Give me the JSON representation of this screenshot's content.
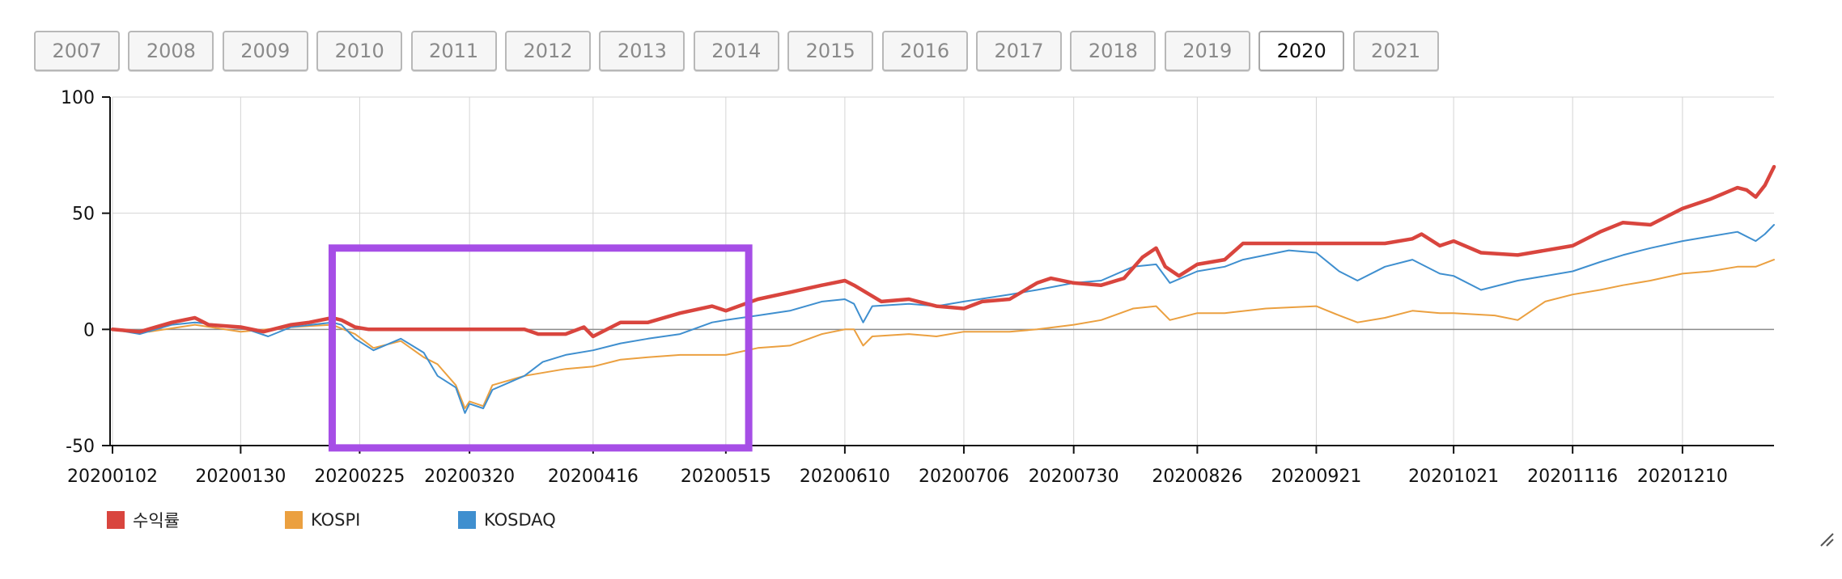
{
  "year_tabs": [
    {
      "label": "2007",
      "selected": false
    },
    {
      "label": "2008",
      "selected": false
    },
    {
      "label": "2009",
      "selected": false
    },
    {
      "label": "2010",
      "selected": false
    },
    {
      "label": "2011",
      "selected": false
    },
    {
      "label": "2012",
      "selected": false
    },
    {
      "label": "2013",
      "selected": false
    },
    {
      "label": "2014",
      "selected": false
    },
    {
      "label": "2015",
      "selected": false
    },
    {
      "label": "2016",
      "selected": false
    },
    {
      "label": "2017",
      "selected": false
    },
    {
      "label": "2018",
      "selected": false
    },
    {
      "label": "2019",
      "selected": false
    },
    {
      "label": "2020",
      "selected": true
    },
    {
      "label": "2021",
      "selected": false
    }
  ],
  "colors": {
    "return": "#d9453e",
    "kospi": "#eba040",
    "kosdaq": "#3f8fcf",
    "highlight": "#a64ee6",
    "grid": "#d4d4d4",
    "axis": "#111111"
  },
  "legend": [
    {
      "label": "수익률",
      "color": "#d9453e"
    },
    {
      "label": "KOSPI",
      "color": "#eba040"
    },
    {
      "label": "KOSDAQ",
      "color": "#3f8fcf"
    }
  ],
  "chart_data": {
    "type": "line",
    "title": "",
    "xlabel": "",
    "ylabel": "",
    "ylim": [
      -50,
      100
    ],
    "yticks": [
      -50,
      0,
      50,
      100
    ],
    "grid": true,
    "legend_position": "bottom-left",
    "x_tick_labels": [
      "20200102",
      "20200130",
      "20200225",
      "20200320",
      "20200416",
      "20200515",
      "20200610",
      "20200706",
      "20200730",
      "20200826",
      "20200921",
      "20201021",
      "20201116",
      "20201210"
    ],
    "x": [
      "20200102",
      "20200130",
      "20200225",
      "20200320",
      "20200416",
      "20200515",
      "20200610",
      "20200706",
      "20200730",
      "20200826",
      "20200921",
      "20201021",
      "20201116",
      "20201210",
      "20201230"
    ],
    "highlight_box": {
      "x_start": "20200219",
      "x_end": "20200520",
      "y_top": 35,
      "y_bottom": -51
    },
    "series": [
      {
        "name": "수익률",
        "points": [
          [
            "20200102",
            0
          ],
          [
            "20200108",
            -1
          ],
          [
            "20200115",
            3
          ],
          [
            "20200120",
            5
          ],
          [
            "20200123",
            2
          ],
          [
            "20200130",
            1
          ],
          [
            "20200204",
            -1
          ],
          [
            "20200210",
            2
          ],
          [
            "20200214",
            3
          ],
          [
            "20200219",
            5
          ],
          [
            "20200221",
            4
          ],
          [
            "20200224",
            1
          ],
          [
            "20200227",
            0
          ],
          [
            "20200305",
            0
          ],
          [
            "20200320",
            0
          ],
          [
            "20200401",
            0
          ],
          [
            "20200404",
            -2
          ],
          [
            "20200410",
            -2
          ],
          [
            "20200414",
            1
          ],
          [
            "20200416",
            -3
          ],
          [
            "20200422",
            3
          ],
          [
            "20200428",
            3
          ],
          [
            "20200505",
            7
          ],
          [
            "20200512",
            10
          ],
          [
            "20200515",
            8
          ],
          [
            "20200522",
            13
          ],
          [
            "20200529",
            16
          ],
          [
            "20200605",
            19
          ],
          [
            "20200610",
            21
          ],
          [
            "20200612",
            19
          ],
          [
            "20200618",
            12
          ],
          [
            "20200624",
            13
          ],
          [
            "20200630",
            10
          ],
          [
            "20200706",
            9
          ],
          [
            "20200710",
            12
          ],
          [
            "20200716",
            13
          ],
          [
            "20200722",
            20
          ],
          [
            "20200725",
            22
          ],
          [
            "20200730",
            20
          ],
          [
            "20200805",
            19
          ],
          [
            "20200810",
            22
          ],
          [
            "20200814",
            31
          ],
          [
            "20200817",
            35
          ],
          [
            "20200819",
            27
          ],
          [
            "20200822",
            23
          ],
          [
            "20200826",
            28
          ],
          [
            "20200901",
            30
          ],
          [
            "20200905",
            37
          ],
          [
            "20200921",
            37
          ],
          [
            "20200930",
            37
          ],
          [
            "20201006",
            37
          ],
          [
            "20201012",
            39
          ],
          [
            "20201014",
            41
          ],
          [
            "20201018",
            36
          ],
          [
            "20201021",
            38
          ],
          [
            "20201027",
            33
          ],
          [
            "20201104",
            32
          ],
          [
            "20201116",
            36
          ],
          [
            "20201122",
            42
          ],
          [
            "20201127",
            46
          ],
          [
            "20201203",
            45
          ],
          [
            "20201210",
            52
          ],
          [
            "20201216",
            56
          ],
          [
            "20201222",
            61
          ],
          [
            "20201224",
            60
          ],
          [
            "20201226",
            57
          ],
          [
            "20201228",
            62
          ],
          [
            "20201230",
            70
          ]
        ]
      },
      {
        "name": "KOSPI",
        "points": [
          [
            "20200102",
            0
          ],
          [
            "20200110",
            -1
          ],
          [
            "20200120",
            2
          ],
          [
            "20200130",
            -1
          ],
          [
            "20200210",
            1
          ],
          [
            "20200219",
            2
          ],
          [
            "20200224",
            -2
          ],
          [
            "20200228",
            -8
          ],
          [
            "20200305",
            -5
          ],
          [
            "20200310",
            -12
          ],
          [
            "20200313",
            -15
          ],
          [
            "20200317",
            -24
          ],
          [
            "20200319",
            -34
          ],
          [
            "20200320",
            -31
          ],
          [
            "20200323",
            -33
          ],
          [
            "20200325",
            -24
          ],
          [
            "20200401",
            -20
          ],
          [
            "20200410",
            -17
          ],
          [
            "20200416",
            -16
          ],
          [
            "20200422",
            -13
          ],
          [
            "20200428",
            -12
          ],
          [
            "20200505",
            -11
          ],
          [
            "20200515",
            -11
          ],
          [
            "20200522",
            -8
          ],
          [
            "20200529",
            -7
          ],
          [
            "20200605",
            -2
          ],
          [
            "20200610",
            0
          ],
          [
            "20200612",
            0
          ],
          [
            "20200614",
            -7
          ],
          [
            "20200616",
            -3
          ],
          [
            "20200624",
            -2
          ],
          [
            "20200630",
            -3
          ],
          [
            "20200706",
            -1
          ],
          [
            "20200716",
            -1
          ],
          [
            "20200722",
            0
          ],
          [
            "20200730",
            2
          ],
          [
            "20200805",
            4
          ],
          [
            "20200812",
            9
          ],
          [
            "20200817",
            10
          ],
          [
            "20200820",
            4
          ],
          [
            "20200826",
            7
          ],
          [
            "20200901",
            7
          ],
          [
            "20200910",
            9
          ],
          [
            "20200921",
            10
          ],
          [
            "20200926",
            6
          ],
          [
            "20200930",
            3
          ],
          [
            "20201006",
            5
          ],
          [
            "20201012",
            8
          ],
          [
            "20201018",
            7
          ],
          [
            "20201021",
            7
          ],
          [
            "20201030",
            6
          ],
          [
            "20201104",
            4
          ],
          [
            "20201110",
            12
          ],
          [
            "20201116",
            15
          ],
          [
            "20201122",
            17
          ],
          [
            "20201127",
            19
          ],
          [
            "20201203",
            21
          ],
          [
            "20201210",
            24
          ],
          [
            "20201216",
            25
          ],
          [
            "20201222",
            27
          ],
          [
            "20201226",
            27
          ],
          [
            "20201230",
            30
          ]
        ]
      },
      {
        "name": "KOSDAQ",
        "points": [
          [
            "20200102",
            0
          ],
          [
            "20200108",
            -2
          ],
          [
            "20200115",
            2
          ],
          [
            "20200120",
            3
          ],
          [
            "20200130",
            1
          ],
          [
            "20200205",
            -3
          ],
          [
            "20200210",
            1
          ],
          [
            "20200219",
            3
          ],
          [
            "20200221",
            2
          ],
          [
            "20200224",
            -4
          ],
          [
            "20200228",
            -9
          ],
          [
            "20200305",
            -4
          ],
          [
            "20200310",
            -10
          ],
          [
            "20200313",
            -20
          ],
          [
            "20200317",
            -25
          ],
          [
            "20200319",
            -36
          ],
          [
            "20200320",
            -32
          ],
          [
            "20200323",
            -34
          ],
          [
            "20200325",
            -26
          ],
          [
            "20200401",
            -20
          ],
          [
            "20200405",
            -14
          ],
          [
            "20200410",
            -11
          ],
          [
            "20200416",
            -9
          ],
          [
            "20200422",
            -6
          ],
          [
            "20200428",
            -4
          ],
          [
            "20200505",
            -2
          ],
          [
            "20200512",
            3
          ],
          [
            "20200515",
            4
          ],
          [
            "20200522",
            6
          ],
          [
            "20200529",
            8
          ],
          [
            "20200605",
            12
          ],
          [
            "20200610",
            13
          ],
          [
            "20200612",
            11
          ],
          [
            "20200614",
            3
          ],
          [
            "20200616",
            10
          ],
          [
            "20200624",
            11
          ],
          [
            "20200630",
            10
          ],
          [
            "20200706",
            12
          ],
          [
            "20200716",
            15
          ],
          [
            "20200722",
            17
          ],
          [
            "20200730",
            20
          ],
          [
            "20200805",
            21
          ],
          [
            "20200812",
            27
          ],
          [
            "20200817",
            28
          ],
          [
            "20200820",
            20
          ],
          [
            "20200826",
            25
          ],
          [
            "20200901",
            27
          ],
          [
            "20200905",
            30
          ],
          [
            "20200915",
            34
          ],
          [
            "20200921",
            33
          ],
          [
            "20200926",
            25
          ],
          [
            "20200930",
            21
          ],
          [
            "20201006",
            27
          ],
          [
            "20201012",
            30
          ],
          [
            "20201018",
            24
          ],
          [
            "20201021",
            23
          ],
          [
            "20201027",
            17
          ],
          [
            "20201104",
            21
          ],
          [
            "20201116",
            25
          ],
          [
            "20201122",
            29
          ],
          [
            "20201127",
            32
          ],
          [
            "20201203",
            35
          ],
          [
            "20201210",
            38
          ],
          [
            "20201216",
            40
          ],
          [
            "20201222",
            42
          ],
          [
            "20201226",
            38
          ],
          [
            "20201228",
            41
          ],
          [
            "20201230",
            45
          ]
        ]
      }
    ]
  }
}
